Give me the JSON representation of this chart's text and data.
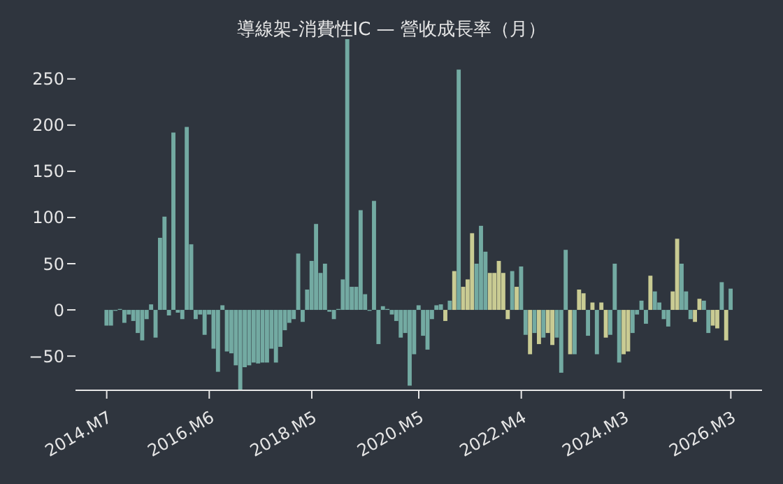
{
  "chart_data": {
    "type": "bar",
    "title": "導線架-消費性IC — 營收成長率（月）",
    "x": [
      "2014-07",
      "2014-08",
      "2014-09",
      "2014-10",
      "2014-11",
      "2014-12",
      "2015-01",
      "2015-02",
      "2015-03",
      "2015-04",
      "2015-05",
      "2015-06",
      "2015-07",
      "2015-08",
      "2015-09",
      "2015-10",
      "2015-11",
      "2015-12",
      "2016-01",
      "2016-02",
      "2016-03",
      "2016-04",
      "2016-05",
      "2016-06",
      "2016-07",
      "2016-08",
      "2016-09",
      "2016-10",
      "2016-11",
      "2016-12",
      "2017-01",
      "2017-02",
      "2017-03",
      "2017-04",
      "2017-05",
      "2017-06",
      "2017-07",
      "2017-08",
      "2017-09",
      "2017-10",
      "2017-11",
      "2017-12",
      "2018-01",
      "2018-02",
      "2018-03",
      "2018-04",
      "2018-05",
      "2018-06",
      "2018-07",
      "2018-08",
      "2018-09",
      "2018-10",
      "2018-11",
      "2018-12",
      "2019-01",
      "2019-02",
      "2019-03",
      "2019-04",
      "2019-05",
      "2019-06",
      "2019-07",
      "2019-08",
      "2019-09",
      "2019-10",
      "2019-11",
      "2019-12",
      "2020-01",
      "2020-02",
      "2020-03",
      "2020-04",
      "2020-05",
      "2020-06",
      "2020-07",
      "2020-08",
      "2020-09",
      "2020-10",
      "2020-11",
      "2020-12",
      "2021-01",
      "2021-02",
      "2021-03",
      "2021-04",
      "2021-05",
      "2021-06",
      "2021-07",
      "2021-08",
      "2021-09",
      "2021-10",
      "2021-11",
      "2021-12",
      "2022-01",
      "2022-02",
      "2022-03",
      "2022-04",
      "2022-05",
      "2022-06",
      "2022-07",
      "2022-08",
      "2022-09",
      "2022-10",
      "2022-11",
      "2022-12",
      "2023-01",
      "2023-02",
      "2023-03",
      "2023-04",
      "2023-05",
      "2023-06",
      "2023-07",
      "2023-08",
      "2023-09",
      "2023-10",
      "2023-11",
      "2023-12",
      "2024-01",
      "2024-02",
      "2024-03",
      "2024-04",
      "2024-05",
      "2024-06",
      "2024-07",
      "2024-08",
      "2024-09",
      "2024-10",
      "2024-11",
      "2024-12",
      "2025-01",
      "2025-02",
      "2025-03",
      "2025-04",
      "2025-05",
      "2025-06",
      "2025-07",
      "2025-08",
      "2025-09",
      "2025-10",
      "2025-11",
      "2025-12",
      "2026-01",
      "2026-02",
      "2026-03"
    ],
    "values": [
      -17,
      -17,
      -1,
      1,
      -14,
      -5,
      -12,
      -25,
      -33,
      -10,
      6,
      -30,
      78,
      101,
      -6,
      192,
      -3,
      -10,
      198,
      71,
      -10,
      -5,
      -27,
      -5,
      -42,
      -67,
      5,
      -45,
      -47,
      -60,
      -87,
      -62,
      -60,
      -57,
      -58,
      -57,
      -57,
      -42,
      -57,
      -40,
      -22,
      -14,
      -10,
      61,
      -13,
      22,
      53,
      93,
      40,
      50,
      -2,
      -10,
      1,
      33,
      293,
      25,
      25,
      108,
      17,
      -1,
      118,
      -37,
      4,
      1,
      -5,
      -12,
      -30,
      -25,
      -82,
      -48,
      5,
      -28,
      -43,
      -10,
      5,
      6,
      -12,
      10,
      42,
      260,
      25,
      33,
      83,
      50,
      91,
      63,
      40,
      40,
      53,
      40,
      -10,
      42,
      25,
      47,
      -27,
      -48,
      -25,
      -37,
      -30,
      -25,
      -38,
      -30,
      -68,
      65,
      -48,
      -48,
      22,
      18,
      -28,
      8,
      -48,
      8,
      -30,
      -27,
      50,
      -57,
      -48,
      -45,
      -25,
      -5,
      10,
      -15,
      37,
      20,
      8,
      -10,
      -18,
      20,
      77,
      50,
      20,
      -10,
      -13,
      12,
      10,
      -25,
      -17,
      -20,
      30,
      -33,
      23
    ],
    "colors": [
      "#73aaa2",
      "#73aaa2",
      "#73aaa2",
      "#73aaa2",
      "#73aaa2",
      "#73aaa2",
      "#73aaa2",
      "#73aaa2",
      "#73aaa2",
      "#73aaa2",
      "#73aaa2",
      "#73aaa2",
      "#73aaa2",
      "#73aaa2",
      "#73aaa2",
      "#73aaa2",
      "#73aaa2",
      "#73aaa2",
      "#73aaa2",
      "#73aaa2",
      "#73aaa2",
      "#73aaa2",
      "#73aaa2",
      "#73aaa2",
      "#73aaa2",
      "#73aaa2",
      "#73aaa2",
      "#73aaa2",
      "#73aaa2",
      "#73aaa2",
      "#73aaa2",
      "#73aaa2",
      "#73aaa2",
      "#73aaa2",
      "#73aaa2",
      "#73aaa2",
      "#73aaa2",
      "#73aaa2",
      "#73aaa2",
      "#73aaa2",
      "#73aaa2",
      "#73aaa2",
      "#73aaa2",
      "#73aaa2",
      "#73aaa2",
      "#73aaa2",
      "#73aaa2",
      "#73aaa2",
      "#73aaa2",
      "#73aaa2",
      "#73aaa2",
      "#73aaa2",
      "#73aaa2",
      "#73aaa2",
      "#73aaa2",
      "#73aaa2",
      "#73aaa2",
      "#73aaa2",
      "#73aaa2",
      "#73aaa2",
      "#73aaa2",
      "#73aaa2",
      "#73aaa2",
      "#73aaa2",
      "#73aaa2",
      "#73aaa2",
      "#73aaa2",
      "#73aaa2",
      "#73aaa2",
      "#73aaa2",
      "#73aaa2",
      "#73aaa2",
      "#73aaa2",
      "#73aaa2",
      "#73aaa2",
      "#73aaa2",
      "#c9cb93",
      "#73aaa2",
      "#c9cb93",
      "#73aaa2",
      "#c9cb93",
      "#c9cb93",
      "#c9cb93",
      "#73aaa2",
      "#73aaa2",
      "#73aaa2",
      "#c9cb93",
      "#c9cb93",
      "#c9cb93",
      "#c9cb93",
      "#c9cb93",
      "#73aaa2",
      "#c9cb93",
      "#73aaa2",
      "#73aaa2",
      "#c9cb93",
      "#73aaa2",
      "#c9cb93",
      "#73aaa2",
      "#c9cb93",
      "#c9cb93",
      "#73aaa2",
      "#73aaa2",
      "#73aaa2",
      "#c9cb93",
      "#73aaa2",
      "#c9cb93",
      "#c9cb93",
      "#73aaa2",
      "#c9cb93",
      "#73aaa2",
      "#c9cb93",
      "#c9cb93",
      "#73aaa2",
      "#73aaa2",
      "#73aaa2",
      "#c9cb93",
      "#c9cb93",
      "#73aaa2",
      "#73aaa2",
      "#73aaa2",
      "#73aaa2",
      "#c9cb93",
      "#73aaa2",
      "#73aaa2",
      "#73aaa2",
      "#73aaa2",
      "#c9cb93",
      "#c9cb93",
      "#73aaa2",
      "#73aaa2",
      "#73aaa2",
      "#c9cb93",
      "#c9cb93",
      "#73aaa2",
      "#73aaa2",
      "#c9cb93",
      "#c9cb93",
      "#73aaa2",
      "#c9cb93",
      "#73aaa2"
    ],
    "xlim": [
      "2013-12",
      "2026-10"
    ],
    "xticks": [
      {
        "value": "2014-07",
        "label": "2014.M7"
      },
      {
        "value": "2016-06",
        "label": "2016.M6"
      },
      {
        "value": "2018-05",
        "label": "2018.M5"
      },
      {
        "value": "2020-05",
        "label": "2020.M5"
      },
      {
        "value": "2022-04",
        "label": "2022.M4"
      },
      {
        "value": "2024-03",
        "label": "2024.M3"
      },
      {
        "value": "2026-03",
        "label": "2026.M3"
      }
    ],
    "ylim": [
      -87,
      293
    ],
    "yticks": [
      {
        "value": -50,
        "label": "−50"
      },
      0,
      50,
      100,
      150,
      200,
      250
    ],
    "grid": false,
    "legend": false
  }
}
